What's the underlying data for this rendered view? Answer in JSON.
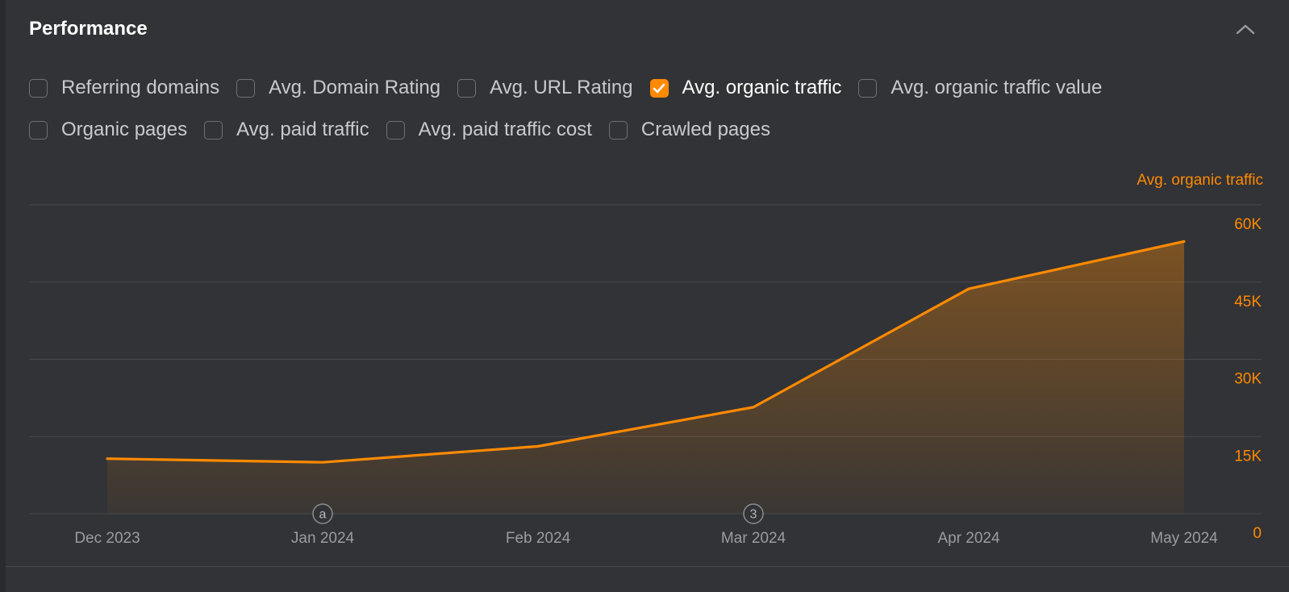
{
  "section": {
    "title": "Performance",
    "collapse_icon": "chevron-up-icon"
  },
  "metrics": {
    "row1": [
      {
        "label": "Referring domains",
        "checked": false
      },
      {
        "label": "Avg. Domain Rating",
        "checked": false
      },
      {
        "label": "Avg. URL Rating",
        "checked": false
      },
      {
        "label": "Avg. organic traffic",
        "checked": true
      },
      {
        "label": "Avg. organic traffic value",
        "checked": false
      }
    ],
    "row2": [
      {
        "label": "Organic pages",
        "checked": false
      },
      {
        "label": "Avg. paid traffic",
        "checked": false
      },
      {
        "label": "Avg. paid traffic cost",
        "checked": false
      },
      {
        "label": "Crawled pages",
        "checked": false
      }
    ]
  },
  "colors": {
    "accent": "#ff8a00",
    "panel_bg": "#323336",
    "text": "#c9cacd"
  },
  "chart_data": {
    "type": "area",
    "x": [
      "Dec 2023",
      "Jan 2024",
      "Feb 2024",
      "Mar 2024",
      "Apr 2024",
      "May 2024"
    ],
    "series": [
      {
        "name": "Avg. organic traffic",
        "values": [
          10700,
          10000,
          13100,
          20700,
          43700,
          52900
        ]
      }
    ],
    "y_axis": {
      "position": "right",
      "ylim": [
        0,
        60000
      ],
      "ticks": [
        "0",
        "15K",
        "30K",
        "45K",
        "60K"
      ]
    },
    "annotations": [
      {
        "x": "Jan 2024",
        "label": "a"
      },
      {
        "x": "Mar 2024",
        "label": "3"
      }
    ],
    "grid": true
  }
}
